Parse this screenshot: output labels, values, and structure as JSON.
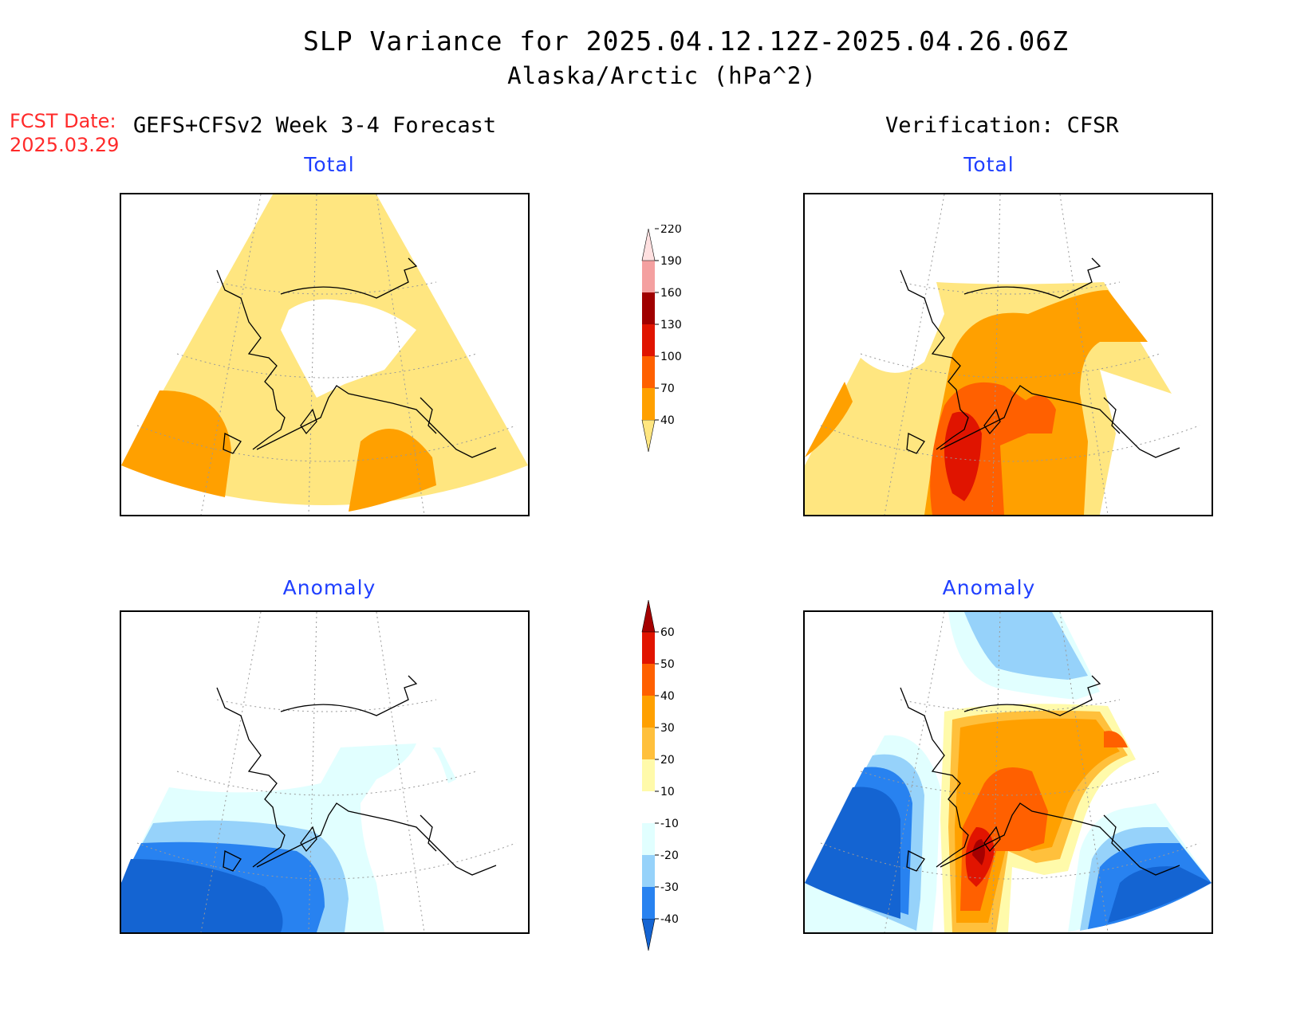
{
  "title": {
    "line1": "SLP Variance for 2025.04.12.12Z-2025.04.26.06Z",
    "line2": "Alaska/Arctic (hPa^2)"
  },
  "forecast_date": {
    "label": "FCST Date:",
    "value": "2025.03.29"
  },
  "left_column_title": "GEFS+CFSv2 Week 3-4 Forecast",
  "right_column_title": "Verification: CFSR",
  "panels": {
    "forecast_total": {
      "title": "Total"
    },
    "verification_total": {
      "title": "Total"
    },
    "forecast_anomaly": {
      "title": "Anomaly"
    },
    "verification_anomaly": {
      "title": "Anomaly"
    }
  },
  "colors": {
    "total_levels": [
      "#ffe680",
      "#ffa000",
      "#ff6000",
      "#e01400",
      "#a00000",
      "#f4a0a0",
      "#ffe0e0"
    ],
    "anomaly_levels": [
      "#1464d2",
      "#2882f0",
      "#96d2fa",
      "#e1ffff",
      "#ffffff",
      "#fffaaa",
      "#ffc03c",
      "#ffa000",
      "#ff6000",
      "#e11400",
      "#a50000"
    ],
    "title_blue": "#1f3fff",
    "date_red": "#ff2a2a"
  },
  "colorbars": {
    "total": {
      "labels": [
        "40",
        "70",
        "100",
        "130",
        "160",
        "190",
        "220"
      ]
    },
    "anomaly": {
      "labels": [
        "-40",
        "-30",
        "-20",
        "-10",
        "10",
        "20",
        "30",
        "40",
        "50",
        "60"
      ]
    }
  }
}
